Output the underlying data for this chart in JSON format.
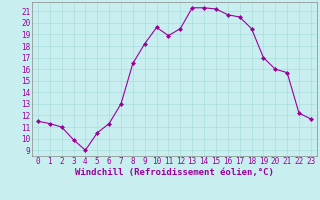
{
  "x": [
    0,
    1,
    2,
    3,
    4,
    5,
    6,
    7,
    8,
    9,
    10,
    11,
    12,
    13,
    14,
    15,
    16,
    17,
    18,
    19,
    20,
    21,
    22,
    23
  ],
  "y": [
    11.5,
    11.3,
    11.0,
    9.9,
    9.0,
    10.5,
    11.3,
    13.0,
    16.5,
    18.2,
    19.6,
    18.9,
    19.5,
    21.3,
    21.3,
    21.2,
    20.7,
    20.5,
    19.5,
    17.0,
    16.0,
    15.7,
    12.2,
    11.7
  ],
  "line_color": "#9b009b",
  "marker": "D",
  "marker_size": 2.0,
  "bg_color": "#c8eef0",
  "grid_color": "#aadddd",
  "xlabel": "Windchill (Refroidissement éolien,°C)",
  "xlabel_color": "#9b009b",
  "xlim": [
    -0.5,
    23.5
  ],
  "ylim": [
    8.5,
    21.8
  ],
  "yticks": [
    9,
    10,
    11,
    12,
    13,
    14,
    15,
    16,
    17,
    18,
    19,
    20,
    21
  ],
  "xticks": [
    0,
    1,
    2,
    3,
    4,
    5,
    6,
    7,
    8,
    9,
    10,
    11,
    12,
    13,
    14,
    15,
    16,
    17,
    18,
    19,
    20,
    21,
    22,
    23
  ],
  "tick_label_size": 5.5,
  "xlabel_size": 6.5
}
